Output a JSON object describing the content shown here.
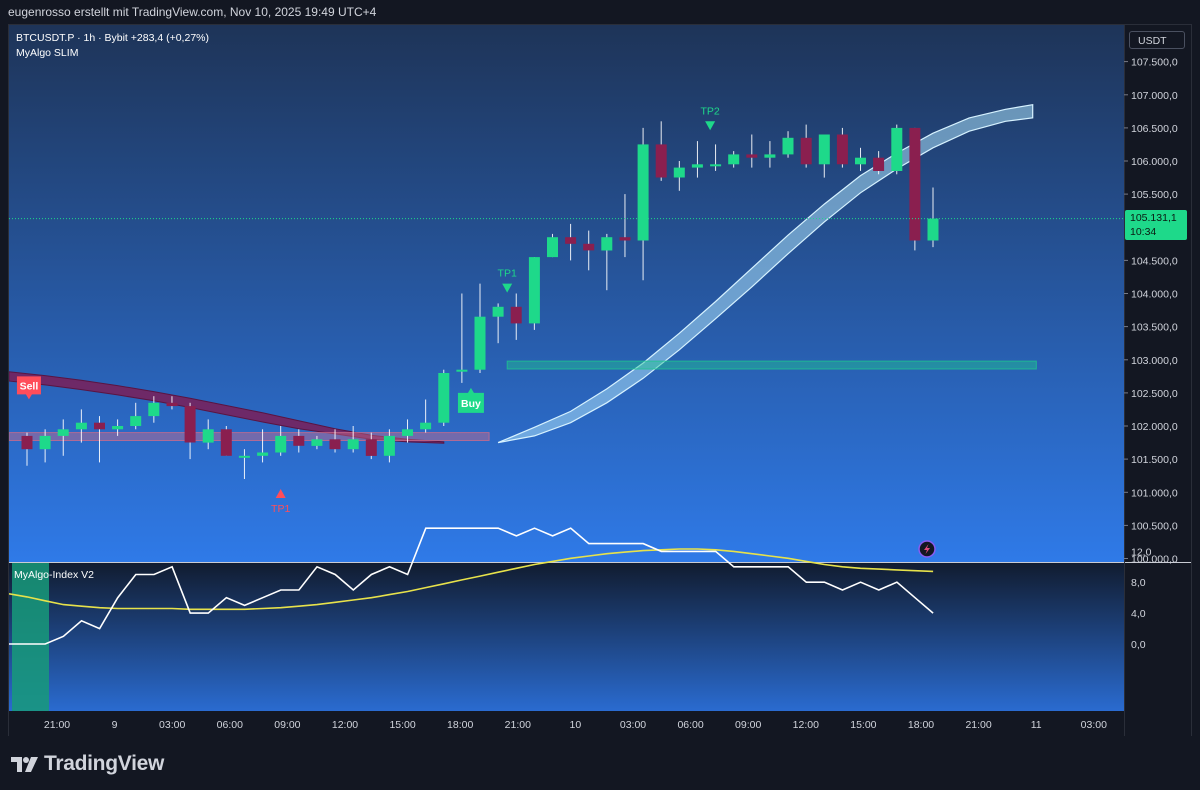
{
  "header": {
    "attribution": "eugenrosso erstellt mit TradingView.com, Nov 10, 2025 19:49 UTC+4"
  },
  "legend": {
    "symbol": "BTCUSDT.P · 1h · Bybit",
    "change": "+283,4 (+0,27%)",
    "indicator": "MyAlgo SLIM"
  },
  "price_axis": {
    "unit": "USDT",
    "current_price": "105.131,1",
    "countdown": "10:34",
    "current_price_value": 105131.1
  },
  "footer": {
    "brand": "TradingView"
  },
  "colors": {
    "bg_top": "#1e3458",
    "bg_bottom": "#2f7ae8",
    "up": "#1ed98a",
    "down": "#8a1f4f",
    "band": "#a8dcf5",
    "dband": "#7a1e58",
    "index_line": "#ffffff",
    "index_signal": "#e7e24b",
    "zone": "#189a7a"
  },
  "chart_data": [
    {
      "type": "candlestick",
      "title": "BTCUSDT.P · 1h · Bybit",
      "ylim": [
        100000,
        108000
      ],
      "grid": false,
      "time_axis": [
        "21:00",
        "9",
        "03:00",
        "06:00",
        "09:00",
        "12:00",
        "15:00",
        "18:00",
        "21:00",
        "10",
        "03:00",
        "06:00",
        "09:00",
        "12:00",
        "15:00",
        "18:00",
        "21:00",
        "11",
        "03:00"
      ],
      "price_ticks": [
        {
          "v": 107500,
          "label": "107.500,0"
        },
        {
          "v": 107000,
          "label": "107.000,0"
        },
        {
          "v": 106500,
          "label": "106.500,0"
        },
        {
          "v": 106000,
          "label": "106.000,0"
        },
        {
          "v": 105500,
          "label": "105.500,0"
        },
        {
          "v": 104500,
          "label": "104.500,0"
        },
        {
          "v": 104000,
          "label": "104.000,0"
        },
        {
          "v": 103500,
          "label": "103.500,0"
        },
        {
          "v": 103000,
          "label": "103.000,0"
        },
        {
          "v": 102500,
          "label": "102.500,0"
        },
        {
          "v": 102000,
          "label": "102.000,0"
        },
        {
          "v": 101500,
          "label": "101.500,0"
        },
        {
          "v": 101000,
          "label": "101.000,0"
        },
        {
          "v": 100500,
          "label": "100.500,0"
        },
        {
          "v": 100000,
          "label": "100.000,0"
        }
      ],
      "candles": [
        {
          "o": 101850,
          "h": 101900,
          "l": 101400,
          "c": 101650
        },
        {
          "o": 101650,
          "h": 101950,
          "l": 101450,
          "c": 101850
        },
        {
          "o": 101850,
          "h": 102100,
          "l": 101550,
          "c": 101950
        },
        {
          "o": 101950,
          "h": 102250,
          "l": 101750,
          "c": 102050
        },
        {
          "o": 102050,
          "h": 102150,
          "l": 101450,
          "c": 101950
        },
        {
          "o": 101950,
          "h": 102100,
          "l": 101850,
          "c": 102000
        },
        {
          "o": 102000,
          "h": 102350,
          "l": 101950,
          "c": 102150
        },
        {
          "o": 102150,
          "h": 102450,
          "l": 102050,
          "c": 102350
        },
        {
          "o": 102350,
          "h": 102450,
          "l": 102250,
          "c": 102300
        },
        {
          "o": 102300,
          "h": 102350,
          "l": 101500,
          "c": 101750
        },
        {
          "o": 101750,
          "h": 102100,
          "l": 101650,
          "c": 101950
        },
        {
          "o": 101950,
          "h": 102000,
          "l": 101550,
          "c": 101550
        },
        {
          "o": 101550,
          "h": 101650,
          "l": 101200,
          "c": 101550
        },
        {
          "o": 101550,
          "h": 101950,
          "l": 101450,
          "c": 101600
        },
        {
          "o": 101600,
          "h": 102000,
          "l": 101550,
          "c": 101850
        },
        {
          "o": 101850,
          "h": 101950,
          "l": 101600,
          "c": 101700
        },
        {
          "o": 101700,
          "h": 101850,
          "l": 101650,
          "c": 101800
        },
        {
          "o": 101800,
          "h": 101950,
          "l": 101600,
          "c": 101650
        },
        {
          "o": 101650,
          "h": 102000,
          "l": 101600,
          "c": 101800
        },
        {
          "o": 101800,
          "h": 101900,
          "l": 101500,
          "c": 101550
        },
        {
          "o": 101550,
          "h": 101950,
          "l": 101450,
          "c": 101850
        },
        {
          "o": 101850,
          "h": 102100,
          "l": 101750,
          "c": 101950
        },
        {
          "o": 101950,
          "h": 102400,
          "l": 101900,
          "c": 102050
        },
        {
          "o": 102050,
          "h": 102850,
          "l": 102000,
          "c": 102800
        },
        {
          "o": 102850,
          "h": 104000,
          "l": 102650,
          "c": 102850
        },
        {
          "o": 102850,
          "h": 104150,
          "l": 102800,
          "c": 103650
        },
        {
          "o": 103650,
          "h": 103850,
          "l": 103250,
          "c": 103800
        },
        {
          "o": 103800,
          "h": 104000,
          "l": 103300,
          "c": 103550
        },
        {
          "o": 103550,
          "h": 104550,
          "l": 103450,
          "c": 104550
        },
        {
          "o": 104550,
          "h": 104900,
          "l": 104550,
          "c": 104850
        },
        {
          "o": 104850,
          "h": 105050,
          "l": 104500,
          "c": 104750
        },
        {
          "o": 104750,
          "h": 104950,
          "l": 104350,
          "c": 104650
        },
        {
          "o": 104650,
          "h": 104900,
          "l": 104050,
          "c": 104850
        },
        {
          "o": 104850,
          "h": 105500,
          "l": 104550,
          "c": 104800
        },
        {
          "o": 104800,
          "h": 106500,
          "l": 104200,
          "c": 106250
        },
        {
          "o": 106250,
          "h": 106600,
          "l": 105700,
          "c": 105750
        },
        {
          "o": 105750,
          "h": 106000,
          "l": 105550,
          "c": 105900
        },
        {
          "o": 105900,
          "h": 106300,
          "l": 105750,
          "c": 105950
        },
        {
          "o": 105950,
          "h": 106250,
          "l": 105850,
          "c": 105950
        },
        {
          "o": 105950,
          "h": 106150,
          "l": 105900,
          "c": 106100
        },
        {
          "o": 106100,
          "h": 106400,
          "l": 105900,
          "c": 106050
        },
        {
          "o": 106050,
          "h": 106300,
          "l": 105900,
          "c": 106100
        },
        {
          "o": 106100,
          "h": 106450,
          "l": 106050,
          "c": 106350
        },
        {
          "o": 106350,
          "h": 106550,
          "l": 105900,
          "c": 105950
        },
        {
          "o": 105950,
          "h": 106400,
          "l": 105750,
          "c": 106400
        },
        {
          "o": 106400,
          "h": 106500,
          "l": 105900,
          "c": 105950
        },
        {
          "o": 105950,
          "h": 106200,
          "l": 105850,
          "c": 106050
        },
        {
          "o": 106050,
          "h": 106150,
          "l": 105800,
          "c": 105850
        },
        {
          "o": 105850,
          "h": 106550,
          "l": 105800,
          "c": 106500
        },
        {
          "o": 106500,
          "h": 106500,
          "l": 104650,
          "c": 104800
        },
        {
          "o": 104800,
          "h": 105600,
          "l": 104700,
          "c": 105131
        }
      ],
      "green_band": [
        [
          26,
          101750,
          101750
        ],
        [
          28,
          101850,
          101980
        ],
        [
          30,
          102050,
          102220
        ],
        [
          32,
          102350,
          102560
        ],
        [
          34,
          102720,
          102950
        ],
        [
          36,
          103150,
          103400
        ],
        [
          38,
          103620,
          103880
        ],
        [
          40,
          104100,
          104380
        ],
        [
          42,
          104600,
          104880
        ],
        [
          44,
          105080,
          105350
        ],
        [
          46,
          105520,
          105780
        ],
        [
          48,
          105880,
          106120
        ],
        [
          50,
          106200,
          106420
        ],
        [
          52,
          106450,
          106650
        ],
        [
          54,
          106600,
          106780
        ],
        [
          55.5,
          106650,
          106850
        ]
      ],
      "red_band": [
        [
          -1,
          102680,
          102820
        ],
        [
          1,
          102620,
          102760
        ],
        [
          3,
          102550,
          102690
        ],
        [
          5,
          102470,
          102610
        ],
        [
          7,
          102380,
          102520
        ],
        [
          9,
          102280,
          102420
        ],
        [
          11,
          102170,
          102310
        ],
        [
          13,
          102060,
          102200
        ],
        [
          15,
          101960,
          102080
        ],
        [
          17,
          101880,
          101960
        ],
        [
          19,
          101800,
          101860
        ],
        [
          21,
          101760,
          101800
        ],
        [
          23,
          101740,
          101760
        ]
      ],
      "zones": [
        {
          "from": -1,
          "to": 25.5,
          "top": 101900,
          "bottom": 101780,
          "color": "#c96a8c"
        },
        {
          "from": 26.5,
          "to": 55.7,
          "top": 102980,
          "bottom": 102860,
          "color": "#1ec590"
        }
      ],
      "signals": [
        {
          "i": 24.5,
          "text": "Buy",
          "kind": "buy",
          "v": 102500
        },
        {
          "i": -0.5,
          "text": "Sell",
          "kind": "sell",
          "v": 102750
        }
      ],
      "tp_markers": [
        {
          "i": 14,
          "text": "TP1",
          "kind": "down",
          "v": 101050
        },
        {
          "i": 26.5,
          "text": "TP1",
          "kind": "up",
          "v": 104150
        },
        {
          "i": 37.7,
          "text": "TP2",
          "kind": "up",
          "v": 106600
        }
      ]
    },
    {
      "type": "line",
      "title": "MyAlgo-Index V2",
      "ylim": [
        -3,
        16
      ],
      "y_ticks": [
        {
          "v": 12,
          "label": "12,0"
        },
        {
          "v": 8,
          "label": "8,0"
        },
        {
          "v": 4,
          "label": "4,0"
        },
        {
          "v": 0,
          "label": "0,0"
        }
      ],
      "series": [
        {
          "values": [
            0,
            0,
            0,
            1,
            3,
            2,
            6,
            9,
            9,
            10,
            4,
            4,
            6,
            5,
            6,
            7,
            7,
            10,
            9,
            7,
            9,
            10,
            9,
            15,
            15,
            15,
            15,
            15,
            14,
            15,
            14,
            15,
            13,
            13,
            13,
            13,
            12,
            12,
            12,
            12,
            10,
            10,
            10,
            10,
            8,
            8,
            7,
            8,
            7,
            8,
            6,
            4
          ]
        },
        {
          "values": [
            6.5,
            6.1,
            5.6,
            5.1,
            4.9,
            4.7,
            4.6,
            4.6,
            4.6,
            4.6,
            4.5,
            4.5,
            4.5,
            4.5,
            4.6,
            4.7,
            4.9,
            5.1,
            5.4,
            5.7,
            6.0,
            6.4,
            6.8,
            7.3,
            7.8,
            8.3,
            8.8,
            9.3,
            9.8,
            10.3,
            10.7,
            11.1,
            11.4,
            11.7,
            11.9,
            12.1,
            12.2,
            12.3,
            12.3,
            12.2,
            12.0,
            11.7,
            11.4,
            11.1,
            10.7,
            10.3,
            10.0,
            9.8,
            9.7,
            9.6,
            9.5,
            9.4
          ]
        }
      ]
    }
  ]
}
